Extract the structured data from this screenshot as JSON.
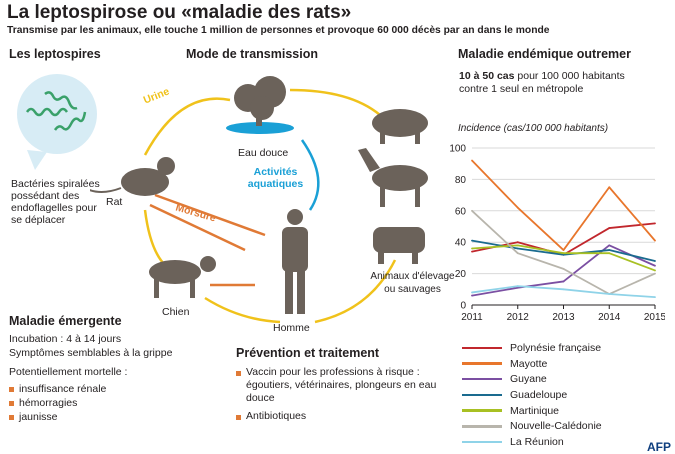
{
  "title": "La leptospirose ou «maladie des rats»",
  "subtitle": "Transmise par les animaux, elle touche 1 million de personnes et provoque 60 000 décès par an dans le monde",
  "sections": {
    "leptospires": "Les leptospires",
    "transmission": "Mode de transmission",
    "endemic": "Maladie endémique outremer",
    "emergent": "Maladie émergente",
    "prevention": "Prévention et traitement"
  },
  "bacteria_text": "Bactéries spiralées possédant des endoflagelles pour se déplacer",
  "transmission_labels": {
    "rat": "Rat",
    "water": "Eau douce",
    "dog": "Chien",
    "man": "Homme",
    "livestock": "Animaux d'élevage ou sauvages",
    "urine": "Urine",
    "bite": "Morsure",
    "activities": "Activités aquatiques"
  },
  "endemic_text_bold": "10 à 50 cas",
  "endemic_text_rest": " pour 100 000 habitants",
  "endemic_text_line2": "contre 1 seul en métropole",
  "emergent": {
    "incubation": "Incubation : 4 à 14 jours",
    "symptoms": "Symptômes semblables à la grippe",
    "mortal": "Potentiellement mortelle :",
    "items": [
      "insuffisance rénale",
      "hémorragies",
      "jaunisse"
    ]
  },
  "prevention": {
    "items": [
      "Vaccin pour les professions à risque : égoutiers, vétérinaires, plongeurs en eau douce",
      "Antibiotiques"
    ]
  },
  "source_logo": "AFP",
  "chart_data": {
    "type": "line",
    "title": "Incidence (cas/100 000 habitants)",
    "x": [
      2011,
      2012,
      2013,
      2014,
      2015
    ],
    "ylim": [
      0,
      100
    ],
    "yticks": [
      0,
      20,
      40,
      60,
      80,
      100
    ],
    "grid": true,
    "legend_position": "bottom",
    "series": [
      {
        "name": "Polynésie française",
        "color": "#c1272d",
        "values": [
          34,
          40,
          32,
          49,
          52
        ]
      },
      {
        "name": "Mayotte",
        "color": "#e8762c",
        "values": [
          92,
          62,
          35,
          75,
          41
        ]
      },
      {
        "name": "Guyane",
        "color": "#7b4fa2",
        "values": [
          6,
          11,
          15,
          38,
          25
        ]
      },
      {
        "name": "Guadeloupe",
        "color": "#1a6b8f",
        "values": [
          41,
          36,
          32,
          35,
          28
        ]
      },
      {
        "name": "Martinique",
        "color": "#a8c023",
        "values": [
          36,
          38,
          33,
          33,
          22
        ]
      },
      {
        "name": "Nouvelle-Calédonie",
        "color": "#b8b5ac",
        "values": [
          60,
          33,
          23,
          7,
          20
        ]
      },
      {
        "name": "La Réunion",
        "color": "#8fd3e8",
        "values": [
          8,
          12,
          10,
          7,
          5
        ]
      }
    ]
  }
}
